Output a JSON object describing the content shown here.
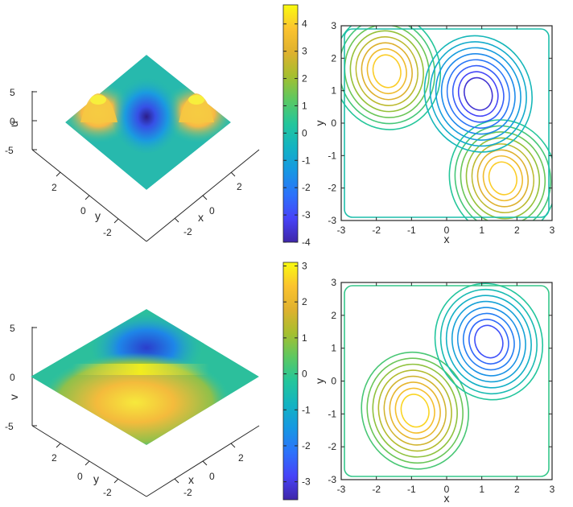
{
  "colors": {
    "colormap": [
      "#3e26a8",
      "#4743f8",
      "#2c72fa",
      "#1797e3",
      "#13b3c2",
      "#24c69b",
      "#5cc862",
      "#a5bf2f",
      "#dfb12f",
      "#fbc32f",
      "#f9fb0e"
    ],
    "axis": "#262626"
  },
  "chart_data": [
    {
      "type": "surface",
      "panel": "top-left",
      "title": "",
      "xlabel": "x",
      "ylabel": "y",
      "zlabel": "u",
      "x_ticks": [
        "-2",
        "0",
        "2"
      ],
      "y_ticks": [
        "2",
        "0",
        "-2"
      ],
      "z_ticks": [
        "5",
        "0",
        "-5"
      ],
      "xlim": [
        -3,
        3
      ],
      "ylim": [
        -3,
        3
      ],
      "zlim": [
        -5,
        5
      ],
      "features": [
        {
          "x": -1.7,
          "y": 1.7,
          "z": 4.5,
          "kind": "peak"
        },
        {
          "x": 1.7,
          "y": -1.7,
          "z": 4.5,
          "kind": "peak"
        },
        {
          "x": 1.0,
          "y": 1.0,
          "z": -4.0,
          "kind": "trough"
        }
      ]
    },
    {
      "type": "colorbar",
      "panel": "top-middle",
      "range": [
        -4,
        4.7
      ],
      "ticks": [
        "4",
        "3",
        "2",
        "1",
        "0",
        "-1",
        "-2",
        "-3",
        "-4"
      ]
    },
    {
      "type": "contour",
      "panel": "top-right",
      "xlabel": "x",
      "ylabel": "y",
      "x_ticks": [
        "-3",
        "-2",
        "-1",
        "0",
        "1",
        "2",
        "3"
      ],
      "y_ticks": [
        "3",
        "2",
        "1",
        "0",
        "-1",
        "-2",
        "-3"
      ],
      "xlim": [
        -3,
        3
      ],
      "ylim": [
        -3,
        3
      ],
      "centers": [
        {
          "x": -1.7,
          "y": 1.6,
          "value": 4.5,
          "kind": "max"
        },
        {
          "x": 1.6,
          "y": -1.7,
          "value": 4.5,
          "kind": "max"
        },
        {
          "x": 0.9,
          "y": 0.9,
          "value": -4.0,
          "kind": "min"
        }
      ]
    },
    {
      "type": "surface",
      "panel": "bottom-left",
      "xlabel": "x",
      "ylabel": "y",
      "zlabel": "v",
      "x_ticks": [
        "-2",
        "0",
        "2"
      ],
      "y_ticks": [
        "2",
        "0",
        "-2"
      ],
      "z_ticks": [
        "5",
        "0",
        "-5"
      ],
      "xlim": [
        -3,
        3
      ],
      "ylim": [
        -3,
        3
      ],
      "zlim": [
        -5,
        5
      ],
      "features": [
        {
          "x": -0.9,
          "y": -0.9,
          "z": 3.0,
          "kind": "peak"
        },
        {
          "x": 1.2,
          "y": 1.2,
          "z": -3.0,
          "kind": "trough"
        }
      ]
    },
    {
      "type": "colorbar",
      "panel": "bottom-middle",
      "range": [
        -3.5,
        3.1
      ],
      "ticks": [
        "3",
        "2",
        "1",
        "0",
        "-1",
        "-2",
        "-3"
      ]
    },
    {
      "type": "contour",
      "panel": "bottom-right",
      "xlabel": "x",
      "ylabel": "y",
      "x_ticks": [
        "-3",
        "-2",
        "-1",
        "0",
        "1",
        "2",
        "3"
      ],
      "y_ticks": [
        "3",
        "2",
        "1",
        "0",
        "-1",
        "-2",
        "-3"
      ],
      "xlim": [
        -3,
        3
      ],
      "ylim": [
        -3,
        3
      ],
      "centers": [
        {
          "x": -0.9,
          "y": -0.9,
          "value": 3.0,
          "kind": "max"
        },
        {
          "x": 1.2,
          "y": 1.2,
          "value": -3.0,
          "kind": "min"
        }
      ]
    }
  ]
}
